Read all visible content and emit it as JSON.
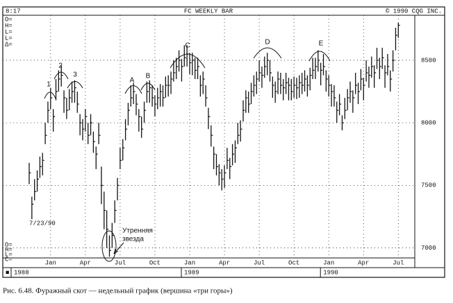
{
  "chart_data": {
    "type": "ohlc",
    "title": "FC WEEKLY BAR",
    "header_left": "8:17",
    "header_right": "© 1990 CQG INC.",
    "quote_labels_top": [
      "O=",
      "H=",
      "L=",
      "L=",
      "Δ="
    ],
    "quote_labels_bottom": [
      "O=",
      "H=",
      "L=",
      "C="
    ],
    "date_label": "7/23/90",
    "corner_mark": "■",
    "annotations": [
      "1",
      "2",
      "3",
      "A",
      "B",
      "C",
      "D",
      "E"
    ],
    "note": [
      "Утренняя",
      "звезда"
    ],
    "caption": "Рис. 6.48. Фуражный скот — недельный график (вершина «три горы»)",
    "color": "#111",
    "ylim": [
      6920,
      8860
    ],
    "yticks": [
      7000,
      7500,
      8000,
      8500
    ],
    "grid": true,
    "categories": [
      null,
      null,
      null,
      null,
      null,
      null,
      null,
      null,
      "Jan",
      null,
      null,
      null,
      null,
      null,
      null,
      null,
      null,
      null,
      null,
      null,
      null,
      "Apr",
      null,
      null,
      null,
      null,
      null,
      null,
      null,
      null,
      null,
      null,
      null,
      null,
      "Jul",
      null,
      null,
      null,
      null,
      null,
      null,
      null,
      null,
      null,
      null,
      null,
      null,
      "Oct",
      null,
      null,
      null,
      null,
      null,
      null,
      null,
      null,
      null,
      null,
      null,
      null,
      "Jan",
      null,
      null,
      null,
      null,
      null,
      null,
      null,
      null,
      null,
      null,
      null,
      null,
      "Apr",
      null,
      null,
      null,
      null,
      null,
      null,
      null,
      null,
      null,
      null,
      null,
      null,
      "Jul",
      null,
      null,
      null,
      null,
      null,
      null,
      null,
      null,
      null,
      null,
      null,
      null,
      "Oct",
      null,
      null,
      null,
      null,
      null,
      null,
      null,
      null,
      null,
      null,
      null,
      null,
      "Jan",
      null,
      null,
      null,
      null,
      null,
      null,
      null,
      null,
      null,
      null,
      null,
      null,
      "Apr",
      null,
      null,
      null,
      null,
      null,
      null,
      null,
      null,
      null,
      null,
      null,
      null,
      "Jul"
    ],
    "years": [
      "1988",
      null,
      null,
      null,
      null,
      null,
      null,
      null,
      null,
      null,
      null,
      null,
      null,
      null,
      null,
      null,
      null,
      null,
      null,
      null,
      null,
      null,
      null,
      null,
      null,
      null,
      null,
      null,
      null,
      null,
      null,
      null,
      null,
      null,
      null,
      null,
      null,
      null,
      null,
      null,
      null,
      null,
      null,
      null,
      null,
      null,
      null,
      null,
      null,
      null,
      null,
      null,
      null,
      null,
      null,
      null,
      null,
      null,
      null,
      null,
      "1989",
      null,
      null,
      null,
      null,
      null,
      null,
      null,
      null,
      null,
      null,
      null,
      null,
      null,
      null,
      null,
      null,
      null,
      null,
      null,
      null,
      null,
      null,
      null,
      null,
      null,
      null,
      null,
      null,
      null,
      null,
      null,
      null,
      null,
      null,
      null,
      null,
      null,
      null,
      null,
      null,
      null,
      null,
      null,
      null,
      null,
      null,
      null,
      null,
      null,
      null,
      null,
      "1990",
      null,
      null,
      null,
      null,
      null,
      null,
      null,
      null,
      null,
      null,
      null,
      null,
      null,
      null,
      null,
      null,
      null,
      null,
      null,
      null,
      null,
      null,
      null,
      null,
      null
    ],
    "high": [
      7680,
      7410,
      7550,
      7620,
      7730,
      7760,
      8000,
      8170,
      8280,
      8110,
      8350,
      8420,
      8460,
      8260,
      8200,
      8270,
      8330,
      8340,
      8250,
      8070,
      8030,
      8110,
      8000,
      8070,
      7930,
      7810,
      8000,
      7650,
      7450,
      7300,
      7100,
      7200,
      7380,
      7560,
      7800,
      7870,
      8030,
      8160,
      8300,
      8320,
      8230,
      8110,
      8050,
      8170,
      8330,
      8340,
      8300,
      8220,
      8280,
      8310,
      8300,
      8370,
      8380,
      8410,
      8500,
      8520,
      8580,
      8510,
      8620,
      8620,
      8560,
      8560,
      8520,
      8520,
      8380,
      8410,
      8300,
      8120,
      7980,
      7810,
      7750,
      7670,
      7630,
      7660,
      7800,
      7720,
      7830,
      7860,
      8000,
      8020,
      8180,
      8260,
      8250,
      8320,
      8380,
      8410,
      8500,
      8450,
      8530,
      8560,
      8500,
      8370,
      8330,
      8410,
      8400,
      8350,
      8400,
      8360,
      8350,
      8370,
      8360,
      8380,
      8400,
      8420,
      8380,
      8440,
      8520,
      8520,
      8580,
      8480,
      8550,
      8420,
      8380,
      8310,
      8300,
      8170,
      8230,
      8060,
      8200,
      8270,
      8330,
      8260,
      8400,
      8320,
      8430,
      8360,
      8500,
      8450,
      8530,
      8460,
      8600,
      8520,
      8600,
      8460,
      8550,
      8420,
      8580,
      8760,
      8800
    ],
    "low": [
      7510,
      7230,
      7380,
      7450,
      7560,
      7580,
      7830,
      8000,
      8110,
      7930,
      8180,
      8250,
      8290,
      8080,
      8030,
      8100,
      8160,
      8160,
      8080,
      7900,
      7860,
      7930,
      7830,
      7900,
      7760,
      7630,
      7830,
      7350,
      7150,
      7000,
      6930,
      7000,
      7200,
      7380,
      7630,
      7700,
      7860,
      7980,
      8130,
      8150,
      8060,
      7930,
      7880,
      8000,
      8160,
      8160,
      8130,
      8050,
      8110,
      8130,
      8130,
      8200,
      8210,
      8230,
      8330,
      8350,
      8410,
      8330,
      8450,
      8450,
      8390,
      8380,
      8350,
      8350,
      8210,
      8230,
      8130,
      7950,
      7810,
      7630,
      7580,
      7500,
      7460,
      7480,
      7630,
      7550,
      7660,
      7680,
      7830,
      7850,
      8010,
      8080,
      8080,
      8150,
      8210,
      8230,
      8330,
      8280,
      8360,
      8380,
      8330,
      8200,
      8160,
      8230,
      8230,
      8180,
      8230,
      8180,
      8180,
      8200,
      8190,
      8200,
      8230,
      8250,
      8210,
      8260,
      8350,
      8350,
      8410,
      8300,
      8380,
      8250,
      8210,
      8130,
      8130,
      8000,
      8060,
      7940,
      8030,
      8100,
      8160,
      8080,
      8230,
      8150,
      8260,
      8180,
      8330,
      8280,
      8360,
      8280,
      8430,
      8350,
      8430,
      8280,
      8380,
      8250,
      8410,
      8580,
      8680
    ],
    "close": [
      7600,
      7350,
      7450,
      7550,
      7650,
      7700,
      7900,
      8100,
      8200,
      8050,
      8250,
      8350,
      8380,
      8200,
      8100,
      8200,
      8250,
      8280,
      8150,
      8000,
      7950,
      8050,
      7900,
      8000,
      7850,
      7750,
      7900,
      7500,
      7300,
      7150,
      6980,
      7100,
      7300,
      7500,
      7700,
      7800,
      7950,
      8100,
      8200,
      8250,
      8150,
      8050,
      7950,
      8100,
      8250,
      8280,
      8200,
      8150,
      8200,
      8250,
      8200,
      8300,
      8300,
      8350,
      8400,
      8450,
      8500,
      8450,
      8520,
      8550,
      8480,
      8500,
      8420,
      8450,
      8300,
      8350,
      8200,
      8050,
      7900,
      7750,
      7650,
      7600,
      7550,
      7600,
      7700,
      7650,
      7750,
      7800,
      7900,
      7950,
      8100,
      8200,
      8150,
      8250,
      8300,
      8350,
      8400,
      8380,
      8450,
      8500,
      8400,
      8300,
      8250,
      8350,
      8300,
      8280,
      8320,
      8300,
      8250,
      8300,
      8280,
      8320,
      8300,
      8350,
      8300,
      8380,
      8420,
      8450,
      8500,
      8420,
      8450,
      8350,
      8300,
      8250,
      8200,
      8100,
      8150,
      8000,
      8100,
      8200,
      8250,
      8200,
      8300,
      8250,
      8350,
      8300,
      8400,
      8380,
      8450,
      8400,
      8500,
      8450,
      8520,
      8400,
      8450,
      8350,
      8500,
      8700,
      8780
    ]
  }
}
